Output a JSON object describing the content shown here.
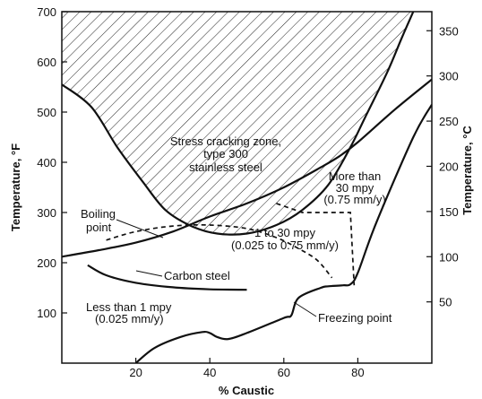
{
  "chart_data": {
    "type": "line",
    "title": "",
    "xlabel": "% Caustic",
    "ylabel_left": "Temperature, °F",
    "ylabel_right": "Temperature, °C",
    "xlim": [
      0,
      100
    ],
    "ylim": [
      0,
      700
    ],
    "ylim_right_celsius": [
      -17.8,
      371.1
    ],
    "grid": false,
    "x_ticks": [
      20,
      40,
      60,
      80
    ],
    "x_tick_labels": [
      "20",
      "40",
      "60",
      "80"
    ],
    "y_ticks": [
      100,
      200,
      300,
      400,
      500,
      600,
      700
    ],
    "y_tick_labels": [
      "100",
      "200",
      "300",
      "400",
      "500",
      "600",
      "700"
    ],
    "y_right_ticks_celsius": [
      50,
      100,
      150,
      200,
      250,
      300,
      350
    ],
    "y_right_tick_labels": [
      "50",
      "100",
      "150",
      "200",
      "250",
      "300",
      "350"
    ],
    "series": [
      {
        "name": "Boiling point",
        "style": "solid",
        "points": [
          [
            0,
            212
          ],
          [
            10,
            225
          ],
          [
            20,
            240
          ],
          [
            30,
            262
          ],
          [
            40,
            292
          ],
          [
            50,
            318
          ],
          [
            60,
            350
          ],
          [
            70,
            390
          ],
          [
            75,
            412
          ],
          [
            80,
            440
          ],
          [
            90,
            505
          ],
          [
            100,
            565
          ]
        ]
      },
      {
        "name": "Freezing point",
        "style": "solid",
        "points": [
          [
            20,
            0
          ],
          [
            25,
            30
          ],
          [
            32,
            52
          ],
          [
            38,
            62
          ],
          [
            40,
            60
          ],
          [
            42,
            52
          ],
          [
            45,
            48
          ],
          [
            50,
            60
          ],
          [
            60,
            90
          ],
          [
            62,
            95
          ],
          [
            64,
            130
          ],
          [
            70,
            150
          ],
          [
            72,
            153
          ],
          [
            76,
            155
          ],
          [
            78,
            157
          ],
          [
            80,
            180
          ],
          [
            85,
            280
          ],
          [
            95,
            450
          ],
          [
            100,
            515
          ]
        ]
      },
      {
        "name": "Stress cracking zone boundary",
        "style": "solid",
        "points": [
          [
            0,
            555
          ],
          [
            8,
            510
          ],
          [
            15,
            430
          ],
          [
            22,
            360
          ],
          [
            28,
            305
          ],
          [
            35,
            273
          ],
          [
            42,
            258
          ],
          [
            50,
            258
          ],
          [
            58,
            275
          ],
          [
            65,
            305
          ],
          [
            72,
            355
          ],
          [
            78,
            430
          ],
          [
            82,
            490
          ],
          [
            88,
            580
          ],
          [
            92,
            650
          ],
          [
            95,
            700
          ]
        ]
      },
      {
        "name": "Carbon steel",
        "style": "solid",
        "points": [
          [
            7,
            195
          ],
          [
            12,
            175
          ],
          [
            20,
            160
          ],
          [
            30,
            151
          ],
          [
            40,
            147
          ],
          [
            50,
            146
          ]
        ]
      },
      {
        "name": "1 to 30 mpy boundary",
        "style": "dashed",
        "points": [
          [
            12,
            245
          ],
          [
            20,
            262
          ],
          [
            30,
            273
          ],
          [
            40,
            275
          ],
          [
            50,
            268
          ],
          [
            58,
            250
          ],
          [
            64,
            228
          ],
          [
            69,
            205
          ],
          [
            73,
            170
          ]
        ]
      },
      {
        "name": "30 mpy boundary",
        "style": "dashed",
        "points": [
          [
            58,
            318
          ],
          [
            65,
            300
          ],
          [
            78,
            300
          ],
          [
            79,
            155
          ]
        ]
      }
    ],
    "annotations": {
      "zone_line1": "Stress cracking zone,",
      "zone_line2": "type 300",
      "zone_line3": "stainless steel",
      "boiling_line1": "Boiling",
      "boiling_line2": "point",
      "more_line1": "More than",
      "more_line2": "30 mpy",
      "more_line3": "(0.75 mm/y)",
      "mid_line1": "1 to 30 mpy",
      "mid_line2": "(0.025 to 0.75 mm/y)",
      "carbon": "Carbon steel",
      "less_line1": "Less than 1 mpy",
      "less_line2": "(0.025 mm/y)",
      "freezing": "Freezing point"
    }
  }
}
